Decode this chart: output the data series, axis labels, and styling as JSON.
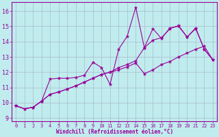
{
  "xlabel": "Windchill (Refroidissement éolien,°C)",
  "bg_color": "#c0ecee",
  "line_color": "#990099",
  "grid_color": "#aabbcc",
  "xlim": [
    -0.5,
    23.5
  ],
  "ylim": [
    8.8,
    16.6
  ],
  "xticks": [
    0,
    1,
    2,
    3,
    4,
    5,
    6,
    7,
    8,
    9,
    10,
    11,
    12,
    13,
    14,
    15,
    16,
    17,
    18,
    19,
    20,
    21,
    22,
    23
  ],
  "yticks": [
    9,
    10,
    11,
    12,
    13,
    14,
    15,
    16
  ],
  "line1_y": [
    9.8,
    9.6,
    9.7,
    10.1,
    11.55,
    11.6,
    11.6,
    11.65,
    11.8,
    12.65,
    12.3,
    11.2,
    13.5,
    14.35,
    16.25,
    13.6,
    14.85,
    14.2,
    14.9,
    15.0,
    14.3,
    14.85,
    13.5,
    12.8
  ],
  "line2_y": [
    9.8,
    9.6,
    9.7,
    10.1,
    10.55,
    10.7,
    10.9,
    11.1,
    11.35,
    11.6,
    11.85,
    12.0,
    12.3,
    12.5,
    12.75,
    13.6,
    14.1,
    14.25,
    14.85,
    15.05,
    14.3,
    14.9,
    13.5,
    12.8
  ],
  "line3_y": [
    9.8,
    9.6,
    9.7,
    10.1,
    10.55,
    10.7,
    10.9,
    11.1,
    11.35,
    11.6,
    11.85,
    12.0,
    12.15,
    12.35,
    12.6,
    11.9,
    12.15,
    12.5,
    12.7,
    13.0,
    13.25,
    13.5,
    13.7,
    12.8
  ]
}
